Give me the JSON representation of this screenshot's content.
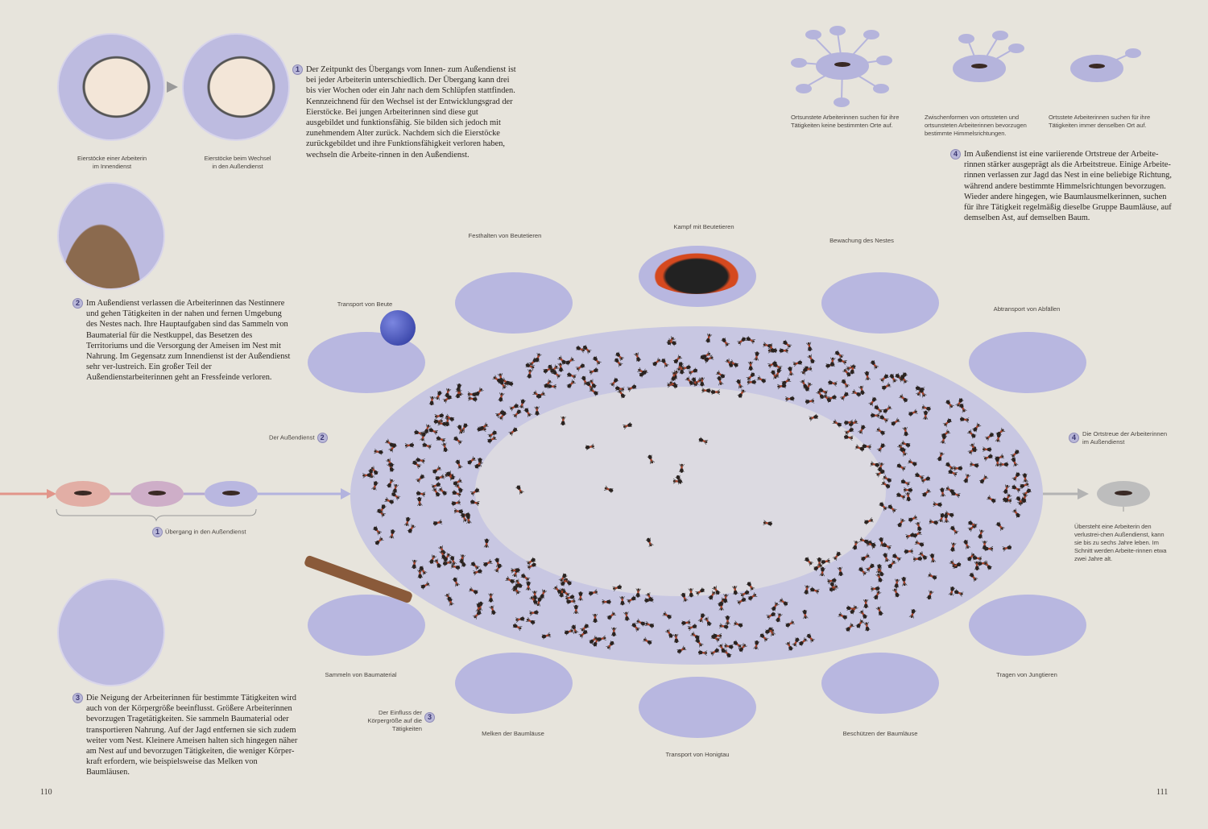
{
  "colors": {
    "background": "#e7e4dc",
    "nest_outer": "#c8c7e2",
    "nest_inner": "#dcdae1",
    "activity": "#b8b7e0",
    "arrow_pink": "#e2958a",
    "arrow_lavender": "#b3b3de",
    "arrow_grey": "#b3b3b3"
  },
  "top_left": {
    "caption_inner": "Eierstöcke einer Arbeiterin im Innendienst",
    "caption_change": "Eierstöcke beim Wechsel in den Außendienst"
  },
  "paragraphs": [
    {
      "number": "1",
      "text": "Der Zeitpunkt des Übergangs vom Innen- zum Außendienst ist bei jeder Arbeiterin unterschiedlich. Der Übergang kann drei bis vier Wochen oder ein Jahr nach dem Schlüpfen stattfinden. Kennzeichnend für den Wechsel ist der Entwicklungsgrad der Eierstöcke. Bei jungen Arbeiterinnen sind diese gut ausgebildet und funktionsfähig. Sie bilden sich jedoch mit zunehmendem Alter zurück. Nachdem sich die Eierstöcke zurückgebildet und ihre Funktionsfähigkeit verloren haben, wechseln die Arbeite-rinnen in den Außendienst."
    },
    {
      "number": "2",
      "text": "Im Außendienst verlassen die Arbeiterinnen das Nestinnere und gehen Tätigkeiten in der nahen und fernen Umgebung des Nestes nach. Ihre Hauptaufgaben sind das Sammeln von Baumaterial für die Nestkuppel, das Besetzen des Territoriums und die Versorgung der Ameisen im Nest mit Nahrung. Im Gegensatz zum Innendienst ist der Außendienst sehr ver-lustreich. Ein großer Teil der Außendienstarbeiterinnen geht an Fressfeinde verloren."
    },
    {
      "number": "3",
      "text": "Die Neigung der Arbeiterinnen für bestimmte Tätigkeiten wird auch von der Körpergröße beeinflusst. Größere Arbeiterinnen bevorzugen Tragetätigkeiten. Sie sammeln Baumaterial oder transportieren Nahrung. Auf der Jagd entfernen sie sich zudem weiter vom Nest. Kleinere Ameisen halten sich hingegen näher am Nest auf und bevorzugen Tätigkeiten, die weniger Körper-kraft erfordern, wie beispielsweise das Melken von Baumläusen."
    },
    {
      "number": "4",
      "text": "Im Außendienst ist eine variierende Ortstreue der Arbeite-rinnen stärker ausgeprägt als die Arbeitstreue. Einige Arbeite-rinnen verlassen zur Jagd das Nest in eine beliebige Richtung, während andere bestimmte Himmelsrichtungen bevorzugen. Wieder andere hingegen, wie Baumlausmelkerinnen, suchen für ihre Tätigkeit regelmäßig dieselbe Gruppe Baumläuse, auf demselben Ast, auf demselben Baum."
    }
  ],
  "site_fidelity": [
    "Ortsunstete Arbeiterinnen suchen für ihre Tätigkeiten keine bestimmten Orte auf.",
    "Zwischenformen von ortssteten und ortsunsteten Arbeiterinnen bevorzugen bestimmte Himmelsrichtungen.",
    "Ortsstete Arbeiterinnen suchen für ihre Tätigkeiten immer denselben Ort auf."
  ],
  "callouts": {
    "outdoor": {
      "number": "2",
      "text": "Der Außendienst"
    },
    "transition": {
      "number": "1",
      "text": "Übergang in den Außendienst"
    },
    "body_size": {
      "number": "3",
      "text": "Der Einfluss der Körpergröße auf die Tätigkeiten"
    },
    "fidelity": {
      "number": "4",
      "text": "Die Ortstreue der Arbeiterinnen im Außendienst"
    },
    "survival": "Übersteht eine Arbeiterin den verlustrei-chen Außendienst, kann sie bis zu sechs Jahre leben. Im Schnitt werden Arbeite-rinnen etwa zwei Jahre alt."
  },
  "activities": [
    "Transport von Beute",
    "Festhalten von Beutetieren",
    "Kampf mit Beutetieren",
    "Bewachung des Nestes",
    "Abtransport von Abfällen",
    "Tragen von Jungtieren",
    "Beschützen der Baumläuse",
    "Transport von Honigtau",
    "Melken der Baumläuse",
    "Sammeln von Baumaterial"
  ],
  "page_numbers": {
    "left": "110",
    "right": "111"
  }
}
